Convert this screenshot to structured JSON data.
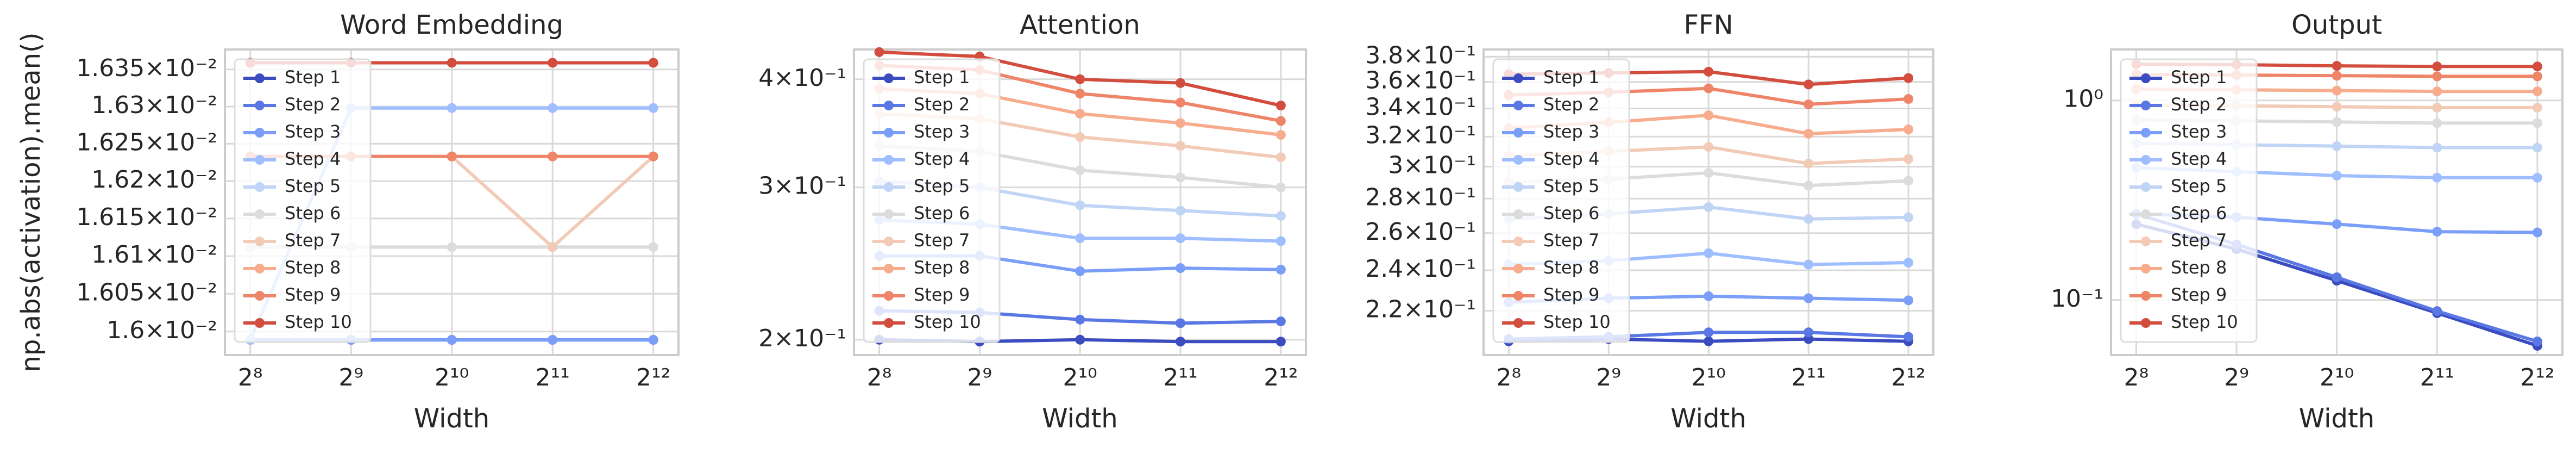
{
  "chart_data": [
    {
      "type": "line",
      "title": "Word Embedding",
      "xlabel": "Width",
      "ylabel": "np.abs(activation).mean()",
      "x": [
        256,
        512,
        1024,
        2048,
        4096
      ],
      "xlim": [
        215,
        4870
      ],
      "xscale": "log",
      "xticks": [
        {
          "value": 256,
          "label": "2⁸"
        },
        {
          "value": 512,
          "label": "2⁹"
        },
        {
          "value": 1024,
          "label": "2¹⁰"
        },
        {
          "value": 2048,
          "label": "2¹¹"
        },
        {
          "value": 4096,
          "label": "2¹²"
        }
      ],
      "ylim": [
        0.015969,
        0.016377
      ],
      "yscale": "log",
      "yticks": [
        {
          "value": 0.016,
          "label": "1.6×10⁻²"
        },
        {
          "value": 0.01605,
          "label": "1.605×10⁻²"
        },
        {
          "value": 0.0161,
          "label": "1.61×10⁻²"
        },
        {
          "value": 0.01615,
          "label": "1.615×10⁻²"
        },
        {
          "value": 0.0162,
          "label": "1.62×10⁻²"
        },
        {
          "value": 0.01625,
          "label": "1.625×10⁻²"
        },
        {
          "value": 0.0163,
          "label": "1.63×10⁻²"
        },
        {
          "value": 0.01635,
          "label": "1.635×10⁻²"
        }
      ],
      "grid": true,
      "legend": "upper left",
      "series": [
        {
          "name": "Step 1",
          "color": "#3b4cc0",
          "values": [
            0.015989,
            0.015989,
            0.015989,
            0.015989,
            0.015989
          ]
        },
        {
          "name": "Step 2",
          "color": "#5a78e4",
          "values": [
            0.015989,
            0.015989,
            0.015989,
            0.015989,
            0.015989
          ]
        },
        {
          "name": "Step 3",
          "color": "#7b9ff9",
          "values": [
            0.015989,
            0.015989,
            0.015989,
            0.015989,
            0.015989
          ]
        },
        {
          "name": "Step 4",
          "color": "#9ebeff",
          "values": [
            0.015989,
            0.016298,
            0.016298,
            0.016298,
            0.016298
          ]
        },
        {
          "name": "Step 5",
          "color": "#c0d4f5",
          "values": [
            0.016112,
            0.016112,
            0.016112,
            0.016112,
            0.016112
          ]
        },
        {
          "name": "Step 6",
          "color": "#dddcdc",
          "values": [
            0.016112,
            0.016112,
            0.016112,
            0.016112,
            0.016112
          ]
        },
        {
          "name": "Step 7",
          "color": "#f2cbb7",
          "values": [
            0.016233,
            0.016233,
            0.016233,
            0.016112,
            0.016233
          ]
        },
        {
          "name": "Step 8",
          "color": "#f7ac8e",
          "values": [
            0.016233,
            0.016233,
            0.016233,
            0.016233,
            0.016233
          ]
        },
        {
          "name": "Step 9",
          "color": "#ee8468",
          "values": [
            0.016233,
            0.016233,
            0.016233,
            0.016233,
            0.016233
          ]
        },
        {
          "name": "Step 10",
          "color": "#d24d3e",
          "values": [
            0.016359,
            0.016359,
            0.016359,
            0.016359,
            0.016359
          ]
        }
      ]
    },
    {
      "type": "line",
      "title": "Attention",
      "xlabel": "Width",
      "x": [
        256,
        512,
        1024,
        2048,
        4096
      ],
      "xlim": [
        215,
        4870
      ],
      "xscale": "log",
      "xticks": [
        {
          "value": 256,
          "label": "2⁸"
        },
        {
          "value": 512,
          "label": "2⁹"
        },
        {
          "value": 1024,
          "label": "2¹⁰"
        },
        {
          "value": 2048,
          "label": "2¹¹"
        },
        {
          "value": 4096,
          "label": "2¹²"
        }
      ],
      "ylim": [
        0.192,
        0.433
      ],
      "yscale": "log",
      "yticks": [
        {
          "value": 0.2,
          "label": "2×10⁻¹"
        },
        {
          "value": 0.3,
          "label": "3×10⁻¹"
        },
        {
          "value": 0.4,
          "label": "4×10⁻¹"
        }
      ],
      "grid": true,
      "legend": "upper left",
      "series": [
        {
          "name": "Step 1",
          "color": "#3b4cc0",
          "values": [
            0.2,
            0.199,
            0.2,
            0.199,
            0.199
          ]
        },
        {
          "name": "Step 2",
          "color": "#5a78e4",
          "values": [
            0.216,
            0.215,
            0.211,
            0.209,
            0.21
          ]
        },
        {
          "name": "Step 3",
          "color": "#7b9ff9",
          "values": [
            0.25,
            0.25,
            0.24,
            0.242,
            0.241
          ]
        },
        {
          "name": "Step 4",
          "color": "#9ebeff",
          "values": [
            0.275,
            0.272,
            0.262,
            0.262,
            0.26
          ]
        },
        {
          "name": "Step 5",
          "color": "#c0d4f5",
          "values": [
            0.305,
            0.3,
            0.286,
            0.282,
            0.278
          ]
        },
        {
          "name": "Step 6",
          "color": "#dddcdc",
          "values": [
            0.335,
            0.33,
            0.314,
            0.308,
            0.3
          ]
        },
        {
          "name": "Step 7",
          "color": "#f2cbb7",
          "values": [
            0.365,
            0.36,
            0.343,
            0.335,
            0.325
          ]
        },
        {
          "name": "Step 8",
          "color": "#f7ac8e",
          "values": [
            0.39,
            0.385,
            0.365,
            0.356,
            0.345
          ]
        },
        {
          "name": "Step 9",
          "color": "#ee8468",
          "values": [
            0.415,
            0.41,
            0.385,
            0.376,
            0.358
          ]
        },
        {
          "name": "Step 10",
          "color": "#d24d3e",
          "values": [
            0.43,
            0.425,
            0.4,
            0.396,
            0.373
          ]
        }
      ]
    },
    {
      "type": "line",
      "title": "FFN",
      "xlabel": "Width",
      "x": [
        256,
        512,
        1024,
        2048,
        4096
      ],
      "xlim": [
        215,
        4870
      ],
      "xscale": "log",
      "xticks": [
        {
          "value": 256,
          "label": "2⁸"
        },
        {
          "value": 512,
          "label": "2⁹"
        },
        {
          "value": 1024,
          "label": "2¹⁰"
        },
        {
          "value": 2048,
          "label": "2¹¹"
        },
        {
          "value": 4096,
          "label": "2¹²"
        }
      ],
      "ylim": [
        0.2,
        0.386
      ],
      "yscale": "log",
      "yticks": [
        {
          "value": 0.22,
          "label": "2.2×10⁻¹"
        },
        {
          "value": 0.24,
          "label": "2.4×10⁻¹"
        },
        {
          "value": 0.26,
          "label": "2.6×10⁻¹"
        },
        {
          "value": 0.28,
          "label": "2.8×10⁻¹"
        },
        {
          "value": 0.3,
          "label": "3×10⁻¹"
        },
        {
          "value": 0.32,
          "label": "3.2×10⁻¹"
        },
        {
          "value": 0.34,
          "label": "3.4×10⁻¹"
        },
        {
          "value": 0.36,
          "label": "3.6×10⁻¹"
        },
        {
          "value": 0.38,
          "label": "3.8×10⁻¹"
        }
      ],
      "grid": true,
      "legend": "upper left",
      "series": [
        {
          "name": "Step 1",
          "color": "#3b4cc0",
          "values": [
            0.206,
            0.207,
            0.206,
            0.207,
            0.206
          ]
        },
        {
          "name": "Step 2",
          "color": "#5a78e4",
          "values": [
            0.207,
            0.208,
            0.21,
            0.21,
            0.208
          ]
        },
        {
          "name": "Step 3",
          "color": "#7b9ff9",
          "values": [
            0.224,
            0.226,
            0.227,
            0.226,
            0.225
          ]
        },
        {
          "name": "Step 4",
          "color": "#9ebeff",
          "values": [
            0.243,
            0.245,
            0.249,
            0.243,
            0.244
          ]
        },
        {
          "name": "Step 5",
          "color": "#c0d4f5",
          "values": [
            0.268,
            0.271,
            0.275,
            0.268,
            0.269
          ]
        },
        {
          "name": "Step 6",
          "color": "#dddcdc",
          "values": [
            0.29,
            0.292,
            0.296,
            0.288,
            0.291
          ]
        },
        {
          "name": "Step 7",
          "color": "#f2cbb7",
          "values": [
            0.307,
            0.31,
            0.313,
            0.302,
            0.305
          ]
        },
        {
          "name": "Step 8",
          "color": "#f7ac8e",
          "values": [
            0.326,
            0.33,
            0.335,
            0.322,
            0.325
          ]
        },
        {
          "name": "Step 9",
          "color": "#ee8468",
          "values": [
            0.35,
            0.352,
            0.355,
            0.343,
            0.347
          ]
        },
        {
          "name": "Step 10",
          "color": "#d24d3e",
          "values": [
            0.366,
            0.367,
            0.368,
            0.358,
            0.363
          ]
        }
      ]
    },
    {
      "type": "line",
      "title": "Output",
      "xlabel": "Width",
      "x": [
        256,
        512,
        1024,
        2048,
        4096
      ],
      "xlim": [
        215,
        4870
      ],
      "xscale": "log",
      "xticks": [
        {
          "value": 256,
          "label": "2⁸"
        },
        {
          "value": 512,
          "label": "2⁹"
        },
        {
          "value": 1024,
          "label": "2¹⁰"
        },
        {
          "value": 2048,
          "label": "2¹¹"
        },
        {
          "value": 4096,
          "label": "2¹²"
        }
      ],
      "ylim": [
        0.053,
        1.8
      ],
      "yscale": "log",
      "yticks": [
        {
          "value": 0.1,
          "label": "10⁻¹"
        },
        {
          "value": 1,
          "label": "10⁰"
        }
      ],
      "grid": true,
      "legend": "upper left",
      "series": [
        {
          "name": "Step 1",
          "color": "#3b4cc0",
          "values": [
            0.24,
            0.18,
            0.125,
            0.086,
            0.059
          ]
        },
        {
          "name": "Step 2",
          "color": "#5a78e4",
          "values": [
            0.27,
            0.19,
            0.13,
            0.088,
            0.062
          ]
        },
        {
          "name": "Step 3",
          "color": "#7b9ff9",
          "values": [
            0.27,
            0.26,
            0.24,
            0.22,
            0.218
          ]
        },
        {
          "name": "Step 4",
          "color": "#9ebeff",
          "values": [
            0.46,
            0.44,
            0.42,
            0.41,
            0.41
          ]
        },
        {
          "name": "Step 5",
          "color": "#c0d4f5",
          "values": [
            0.61,
            0.6,
            0.59,
            0.58,
            0.58
          ]
        },
        {
          "name": "Step 6",
          "color": "#dddcdc",
          "values": [
            0.8,
            0.79,
            0.78,
            0.77,
            0.77
          ]
        },
        {
          "name": "Step 7",
          "color": "#f2cbb7",
          "values": [
            0.95,
            0.94,
            0.93,
            0.92,
            0.92
          ]
        },
        {
          "name": "Step 8",
          "color": "#f7ac8e",
          "values": [
            1.14,
            1.13,
            1.12,
            1.11,
            1.11
          ]
        },
        {
          "name": "Step 9",
          "color": "#ee8468",
          "values": [
            1.35,
            1.34,
            1.33,
            1.32,
            1.32
          ]
        },
        {
          "name": "Step 10",
          "color": "#d24d3e",
          "values": [
            1.52,
            1.51,
            1.49,
            1.48,
            1.48
          ]
        }
      ]
    }
  ]
}
